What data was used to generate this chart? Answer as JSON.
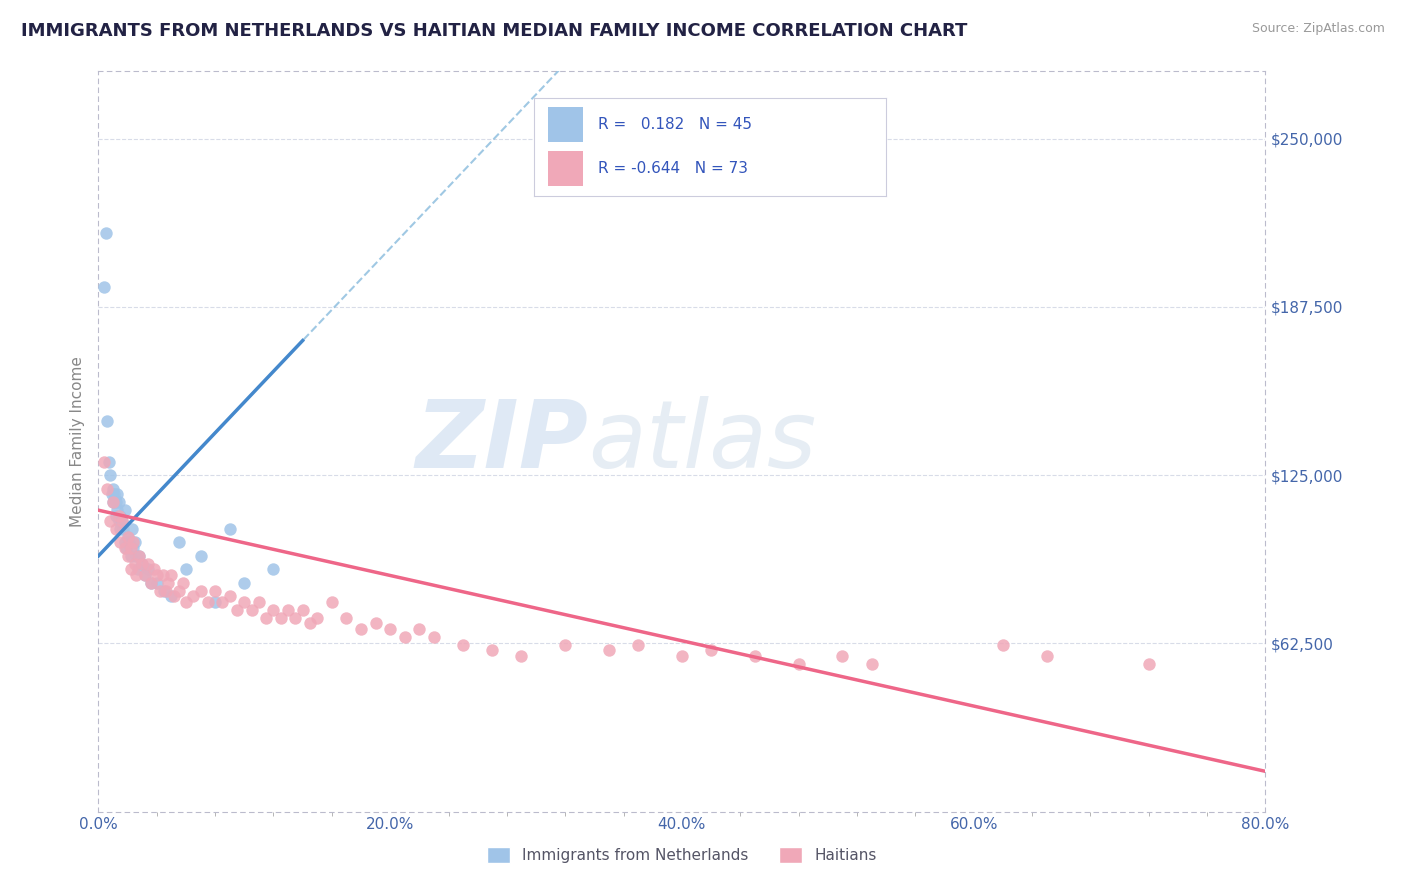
{
  "title": "IMMIGRANTS FROM NETHERLANDS VS HAITIAN MEDIAN FAMILY INCOME CORRELATION CHART",
  "source": "Source: ZipAtlas.com",
  "ylabel": "Median Family Income",
  "yticks": [
    62500,
    125000,
    187500,
    250000
  ],
  "ytick_labels": [
    "$62,500",
    "$125,000",
    "$187,500",
    "$250,000"
  ],
  "xlim": [
    0.0,
    0.8
  ],
  "ylim": [
    0,
    275000
  ],
  "xtick_labels": [
    "0.0%",
    "",
    "",
    "",
    "",
    "20.0%",
    "",
    "",
    "",
    "",
    "40.0%",
    "",
    "",
    "",
    "",
    "60.0%",
    "",
    "",
    "",
    "",
    "80.0%"
  ],
  "xticks": [
    0.0,
    0.04,
    0.08,
    0.12,
    0.16,
    0.2,
    0.24,
    0.28,
    0.32,
    0.36,
    0.4,
    0.44,
    0.48,
    0.52,
    0.56,
    0.6,
    0.64,
    0.68,
    0.72,
    0.76,
    0.8
  ],
  "xtick_major": [
    0.0,
    0.2,
    0.4,
    0.6,
    0.8
  ],
  "xtick_major_labels": [
    "0.0%",
    "20.0%",
    "40.0%",
    "60.0%",
    "80.0%"
  ],
  "background_color": "#ffffff",
  "grid_color": "#d8dce8",
  "blue_color": "#a0c4e8",
  "pink_color": "#f0a8b8",
  "trend_blue": "#4488cc",
  "trend_pink": "#ee6688",
  "dashed_blue": "#88bbdd",
  "label_blue": "Immigrants from Netherlands",
  "label_pink": "Haitians",
  "R_blue": 0.182,
  "N_blue": 45,
  "R_pink": -0.644,
  "N_pink": 73,
  "watermark_zip": "ZIP",
  "watermark_atlas": "atlas",
  "title_color": "#222244",
  "axis_label_color": "#4466aa",
  "legend_text_color": "#3355bb",
  "blue_trend_x0": 0.0,
  "blue_trend_y0": 95000,
  "blue_trend_x1": 0.14,
  "blue_trend_y1": 175000,
  "pink_trend_x0": 0.0,
  "pink_trend_y0": 112000,
  "pink_trend_x1": 0.8,
  "pink_trend_y1": 15000,
  "blue_scatter_x": [
    0.004,
    0.005,
    0.006,
    0.007,
    0.008,
    0.009,
    0.01,
    0.01,
    0.011,
    0.012,
    0.012,
    0.013,
    0.013,
    0.014,
    0.014,
    0.015,
    0.015,
    0.016,
    0.017,
    0.018,
    0.018,
    0.019,
    0.02,
    0.021,
    0.022,
    0.023,
    0.024,
    0.025,
    0.026,
    0.027,
    0.028,
    0.03,
    0.032,
    0.034,
    0.036,
    0.04,
    0.045,
    0.05,
    0.055,
    0.06,
    0.07,
    0.08,
    0.09,
    0.1,
    0.12
  ],
  "blue_scatter_y": [
    195000,
    215000,
    145000,
    130000,
    125000,
    118000,
    120000,
    115000,
    118000,
    115000,
    110000,
    118000,
    112000,
    108000,
    115000,
    110000,
    105000,
    108000,
    105000,
    100000,
    112000,
    98000,
    102000,
    100000,
    95000,
    105000,
    98000,
    100000,
    95000,
    90000,
    95000,
    92000,
    88000,
    90000,
    85000,
    85000,
    82000,
    80000,
    100000,
    90000,
    95000,
    78000,
    105000,
    85000,
    90000
  ],
  "pink_scatter_x": [
    0.004,
    0.006,
    0.008,
    0.01,
    0.012,
    0.014,
    0.015,
    0.016,
    0.018,
    0.02,
    0.02,
    0.022,
    0.022,
    0.024,
    0.025,
    0.026,
    0.028,
    0.03,
    0.032,
    0.034,
    0.036,
    0.038,
    0.04,
    0.042,
    0.044,
    0.046,
    0.048,
    0.05,
    0.052,
    0.055,
    0.058,
    0.06,
    0.065,
    0.07,
    0.075,
    0.08,
    0.085,
    0.09,
    0.095,
    0.1,
    0.105,
    0.11,
    0.115,
    0.12,
    0.125,
    0.13,
    0.135,
    0.14,
    0.145,
    0.15,
    0.16,
    0.17,
    0.18,
    0.19,
    0.2,
    0.21,
    0.22,
    0.23,
    0.25,
    0.27,
    0.29,
    0.32,
    0.35,
    0.37,
    0.4,
    0.42,
    0.45,
    0.48,
    0.51,
    0.53,
    0.62,
    0.65,
    0.72
  ],
  "pink_scatter_y": [
    130000,
    120000,
    108000,
    115000,
    105000,
    110000,
    100000,
    108000,
    98000,
    102000,
    95000,
    98000,
    90000,
    100000,
    92000,
    88000,
    95000,
    92000,
    88000,
    92000,
    85000,
    90000,
    88000,
    82000,
    88000,
    82000,
    85000,
    88000,
    80000,
    82000,
    85000,
    78000,
    80000,
    82000,
    78000,
    82000,
    78000,
    80000,
    75000,
    78000,
    75000,
    78000,
    72000,
    75000,
    72000,
    75000,
    72000,
    75000,
    70000,
    72000,
    78000,
    72000,
    68000,
    70000,
    68000,
    65000,
    68000,
    65000,
    62000,
    60000,
    58000,
    62000,
    60000,
    62000,
    58000,
    60000,
    58000,
    55000,
    58000,
    55000,
    62000,
    58000,
    55000
  ]
}
